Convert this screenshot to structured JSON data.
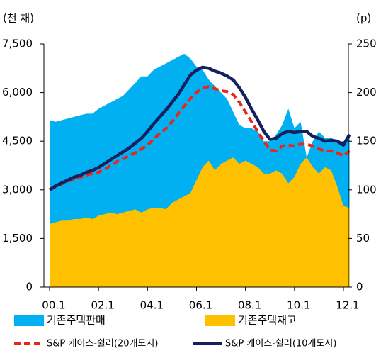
{
  "chart_data": {
    "type": "area-line",
    "y_label": "(천 채)",
    "y2_label": "(p)",
    "categories": [
      "00.1",
      null,
      null,
      null,
      null,
      null,
      null,
      null,
      "02.1",
      null,
      null,
      null,
      null,
      null,
      null,
      null,
      "04.1",
      null,
      null,
      null,
      null,
      null,
      null,
      null,
      "06.1",
      null,
      null,
      null,
      null,
      null,
      null,
      null,
      "08.1",
      null,
      null,
      null,
      null,
      null,
      null,
      null,
      "10.1",
      null,
      null,
      null,
      null,
      null,
      null,
      null,
      "12.1",
      null
    ],
    "ylim": [
      0,
      7500
    ],
    "yticks": [
      0,
      {
        "value": 1500,
        "label": "1,500"
      },
      {
        "value": 3000,
        "label": "3,000"
      },
      {
        "value": 4500,
        "label": "4,500"
      },
      {
        "value": 6000,
        "label": "6,000"
      },
      {
        "value": 7500,
        "label": "7,500"
      }
    ],
    "y2lim": [
      0,
      250
    ],
    "y2ticks": [
      0,
      50,
      100,
      150,
      200,
      250
    ],
    "series": [
      {
        "name": "기존주택판매",
        "kind": "area",
        "color": "#00b0f0",
        "values": [
          5150,
          5100,
          5150,
          5200,
          5250,
          5300,
          5350,
          5350,
          5500,
          5600,
          5700,
          5800,
          5900,
          6100,
          6300,
          6500,
          6500,
          6700,
          6800,
          6900,
          7000,
          7100,
          7200,
          7050,
          6800,
          6700,
          6400,
          6200,
          6000,
          5800,
          5400,
          5000,
          4900,
          4900,
          4800,
          4500,
          4500,
          4700,
          5000,
          5500,
          4900,
          5100,
          4000,
          4500,
          4800,
          4600,
          4600,
          4500,
          4500,
          4600
        ]
      },
      {
        "name": "기존주택재고",
        "kind": "area",
        "color": "#ffc000",
        "values": [
          1950,
          2000,
          2050,
          2050,
          2100,
          2100,
          2150,
          2100,
          2200,
          2250,
          2300,
          2250,
          2300,
          2350,
          2400,
          2300,
          2400,
          2450,
          2450,
          2400,
          2600,
          2700,
          2800,
          2900,
          3300,
          3700,
          3900,
          3600,
          3800,
          3900,
          4000,
          3800,
          3900,
          3800,
          3700,
          3500,
          3500,
          3600,
          3500,
          3200,
          3400,
          3800,
          4000,
          3700,
          3500,
          3700,
          3600,
          3100,
          2500,
          2450
        ]
      },
      {
        "name": "S&P 케이스-쉴러(20개도시)",
        "kind": "dashed",
        "axis": "y2",
        "color": "#e8261e",
        "values": [
          100,
          103,
          106,
          109,
          111,
          113,
          115,
          117,
          118,
          121,
          125,
          129,
          132,
          135,
          138,
          142,
          146,
          152,
          158,
          163,
          170,
          178,
          186,
          194,
          200,
          205,
          206,
          204,
          202,
          201,
          198,
          190,
          180,
          170,
          160,
          150,
          141,
          140,
          145,
          146,
          145,
          147,
          147,
          145,
          142,
          140,
          140,
          138,
          135,
          140
        ]
      },
      {
        "name": "S&P 케이스-쉴러(10개도시)",
        "kind": "line",
        "axis": "y2",
        "color": "#14215e",
        "values": [
          100,
          104,
          107,
          110,
          113,
          115,
          118,
          120,
          123,
          127,
          131,
          135,
          139,
          143,
          148,
          153,
          160,
          168,
          175,
          182,
          190,
          198,
          208,
          218,
          223,
          226,
          225,
          222,
          220,
          217,
          213,
          205,
          195,
          183,
          172,
          160,
          152,
          153,
          158,
          160,
          159,
          160,
          160,
          155,
          153,
          150,
          151,
          150,
          146,
          157
        ]
      }
    ]
  }
}
